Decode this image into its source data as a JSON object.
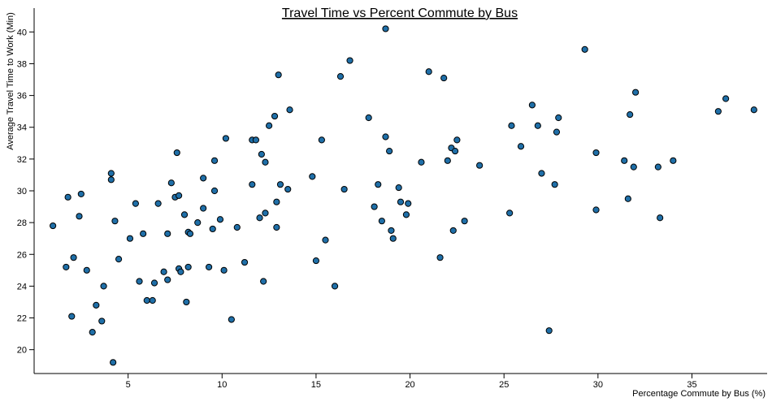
{
  "chart_data": {
    "type": "scatter",
    "title": "Travel Time vs Percent Commute by Bus",
    "xlabel": "Percentage Commute by Bus (%)",
    "ylabel": "Average Travel Time to Work (Min)",
    "xlim": [
      0,
      39
    ],
    "ylim": [
      18.5,
      41.5
    ],
    "x_ticks": [
      5,
      10,
      15,
      20,
      25,
      30,
      35
    ],
    "y_ticks": [
      20,
      22,
      24,
      26,
      28,
      30,
      32,
      34,
      36,
      38,
      40
    ],
    "grid": false,
    "point_color": "#1f6fa8",
    "points": [
      [
        1.0,
        27.8
      ],
      [
        1.7,
        25.2
      ],
      [
        1.8,
        29.6
      ],
      [
        2.0,
        22.1
      ],
      [
        2.1,
        25.8
      ],
      [
        2.4,
        28.4
      ],
      [
        2.5,
        29.8
      ],
      [
        2.8,
        25.0
      ],
      [
        3.1,
        21.1
      ],
      [
        3.3,
        22.8
      ],
      [
        3.6,
        21.8
      ],
      [
        3.7,
        24.0
      ],
      [
        4.1,
        31.1
      ],
      [
        4.1,
        30.7
      ],
      [
        4.2,
        19.2
      ],
      [
        4.3,
        28.1
      ],
      [
        4.5,
        25.7
      ],
      [
        5.1,
        27.0
      ],
      [
        5.4,
        29.2
      ],
      [
        5.6,
        24.3
      ],
      [
        5.8,
        27.3
      ],
      [
        6.0,
        23.1
      ],
      [
        6.3,
        23.1
      ],
      [
        6.4,
        24.2
      ],
      [
        6.6,
        29.2
      ],
      [
        6.9,
        24.9
      ],
      [
        7.1,
        27.3
      ],
      [
        7.1,
        24.4
      ],
      [
        7.3,
        30.5
      ],
      [
        7.5,
        29.6
      ],
      [
        7.6,
        32.4
      ],
      [
        7.7,
        29.7
      ],
      [
        7.7,
        25.1
      ],
      [
        7.8,
        24.9
      ],
      [
        8.0,
        28.5
      ],
      [
        8.1,
        23.0
      ],
      [
        8.2,
        25.2
      ],
      [
        8.2,
        27.4
      ],
      [
        8.3,
        27.3
      ],
      [
        8.7,
        28.0
      ],
      [
        9.0,
        30.8
      ],
      [
        9.0,
        28.9
      ],
      [
        9.3,
        25.2
      ],
      [
        9.5,
        27.6
      ],
      [
        9.6,
        31.9
      ],
      [
        9.6,
        30.0
      ],
      [
        9.9,
        28.2
      ],
      [
        10.1,
        25.0
      ],
      [
        10.2,
        33.3
      ],
      [
        10.5,
        21.9
      ],
      [
        10.8,
        27.7
      ],
      [
        11.2,
        25.5
      ],
      [
        11.6,
        33.2
      ],
      [
        11.6,
        30.4
      ],
      [
        11.8,
        33.2
      ],
      [
        12.0,
        28.3
      ],
      [
        12.1,
        32.3
      ],
      [
        12.2,
        24.3
      ],
      [
        12.3,
        28.6
      ],
      [
        12.3,
        31.8
      ],
      [
        12.5,
        34.1
      ],
      [
        12.8,
        34.7
      ],
      [
        12.9,
        29.3
      ],
      [
        12.9,
        27.7
      ],
      [
        13.0,
        37.3
      ],
      [
        13.1,
        30.4
      ],
      [
        13.5,
        30.1
      ],
      [
        13.6,
        35.1
      ],
      [
        14.8,
        30.9
      ],
      [
        15.0,
        25.6
      ],
      [
        15.3,
        33.2
      ],
      [
        15.5,
        26.9
      ],
      [
        16.0,
        24.0
      ],
      [
        16.3,
        37.2
      ],
      [
        16.5,
        30.1
      ],
      [
        16.8,
        38.2
      ],
      [
        17.8,
        34.6
      ],
      [
        18.1,
        29.0
      ],
      [
        18.3,
        30.4
      ],
      [
        18.5,
        28.1
      ],
      [
        18.7,
        40.2
      ],
      [
        18.7,
        33.4
      ],
      [
        18.9,
        32.5
      ],
      [
        19.0,
        27.5
      ],
      [
        19.1,
        27.0
      ],
      [
        19.4,
        30.2
      ],
      [
        19.5,
        29.3
      ],
      [
        19.8,
        28.5
      ],
      [
        19.9,
        29.2
      ],
      [
        20.6,
        31.8
      ],
      [
        21.0,
        37.5
      ],
      [
        21.6,
        25.8
      ],
      [
        21.8,
        37.1
      ],
      [
        22.0,
        31.9
      ],
      [
        22.2,
        32.7
      ],
      [
        22.3,
        27.5
      ],
      [
        22.4,
        32.5
      ],
      [
        22.5,
        33.2
      ],
      [
        22.9,
        28.1
      ],
      [
        23.7,
        31.6
      ],
      [
        25.3,
        28.6
      ],
      [
        25.4,
        34.1
      ],
      [
        25.9,
        32.8
      ],
      [
        26.5,
        35.4
      ],
      [
        26.8,
        34.1
      ],
      [
        27.0,
        31.1
      ],
      [
        27.4,
        21.2
      ],
      [
        27.7,
        30.4
      ],
      [
        27.8,
        33.7
      ],
      [
        27.9,
        34.6
      ],
      [
        29.3,
        38.9
      ],
      [
        29.9,
        32.4
      ],
      [
        29.9,
        28.8
      ],
      [
        31.4,
        31.9
      ],
      [
        31.6,
        29.5
      ],
      [
        31.7,
        34.8
      ],
      [
        31.9,
        31.5
      ],
      [
        32.0,
        36.2
      ],
      [
        33.2,
        31.5
      ],
      [
        33.3,
        28.3
      ],
      [
        34.0,
        31.9
      ],
      [
        36.4,
        35.0
      ],
      [
        36.8,
        35.8
      ],
      [
        38.3,
        35.1
      ]
    ]
  }
}
